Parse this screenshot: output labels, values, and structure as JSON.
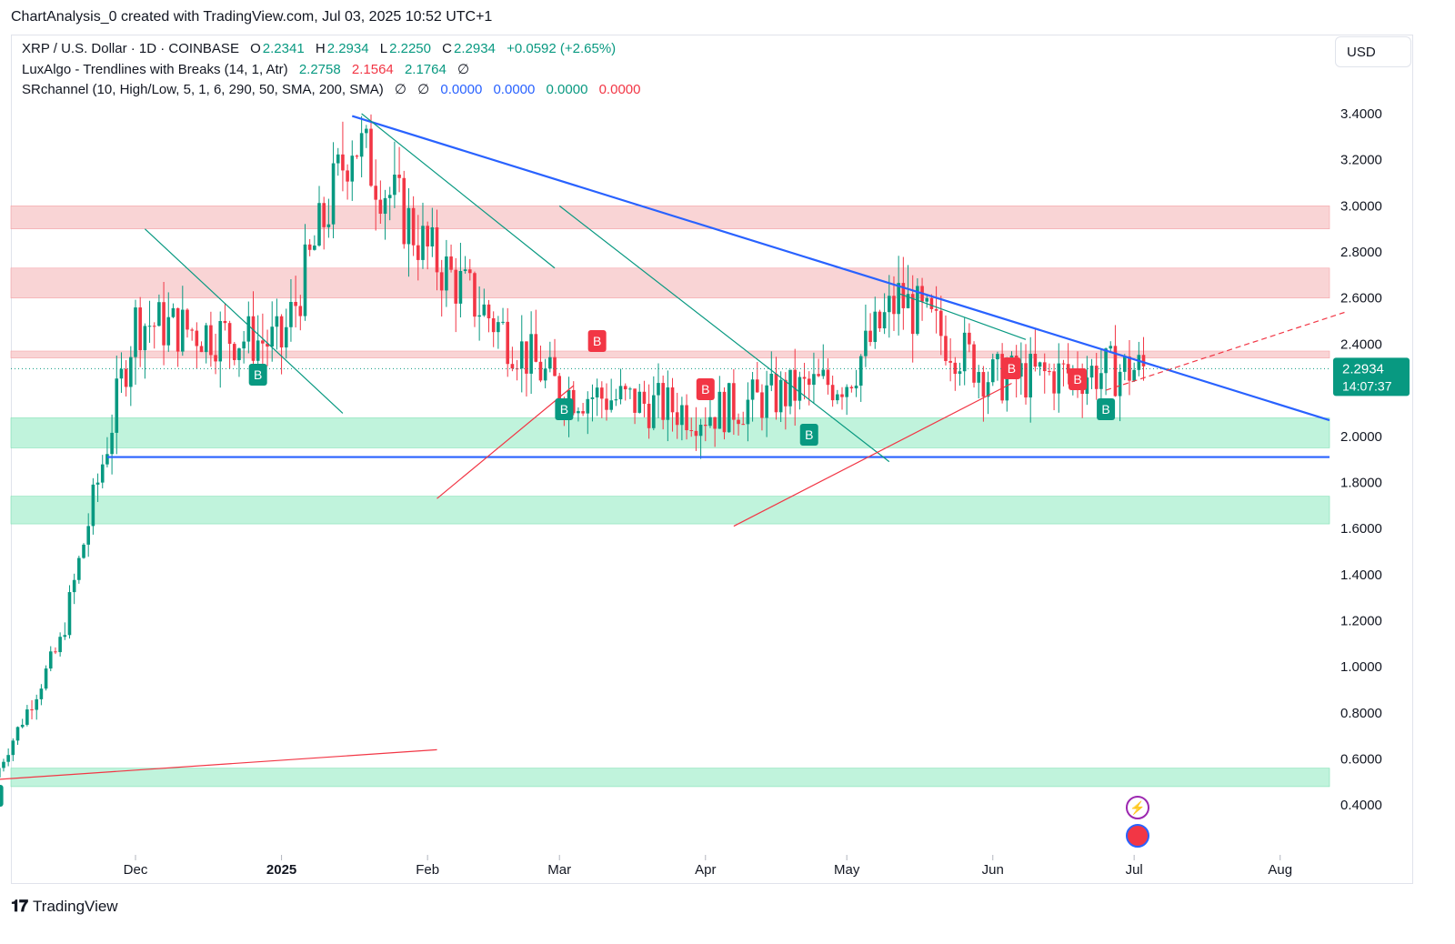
{
  "header": {
    "credit": "ChartAnalysis_0 created with TradingView.com, Jul 03, 2025 10:52 UTC+1"
  },
  "legend": {
    "symbol": "XRP / U.S. Dollar · 1D · COINBASE",
    "o_label": "O",
    "o_value": "2.2341",
    "h_label": "H",
    "h_value": "2.2934",
    "l_label": "L",
    "l_value": "2.2250",
    "c_label": "C",
    "c_value": "2.2934",
    "change": "+0.0592 (+2.65%)",
    "indicator1": "LuxAlgo - Trendlines with Breaks (14, 1, Atr)",
    "indicator1_values": [
      "2.2758",
      "2.1564",
      "2.1764"
    ],
    "indicator2": "SRchannel (10, High/Low, 5, 1, 6, 290, 50, SMA, 200, SMA)",
    "indicator2_values": [
      "0.0000",
      "0.0000",
      "0.0000",
      "0.0000"
    ],
    "hidden_icon": "∅"
  },
  "currency_button": "USD",
  "price_label": {
    "price": "2.2934",
    "countdown": "14:07:37"
  },
  "footer": {
    "brand": "TradingView"
  },
  "colors": {
    "up": "#089981",
    "down": "#f23645",
    "trend": "#2962ff",
    "resistance_zone": "#f8c9cb",
    "support_zone": "#b5f1d6",
    "signal_b_green": "#089981",
    "signal_b_red": "#f23645"
  },
  "chart_data": {
    "type": "candlestick",
    "x_ticks": [
      "Dec",
      "2025",
      "Feb",
      "Mar",
      "Apr",
      "May",
      "Jun",
      "Jul",
      "Aug"
    ],
    "y_ticks": [
      "3.4000",
      "3.2000",
      "3.0000",
      "2.8000",
      "2.6000",
      "2.4000",
      "2.0000",
      "1.8000",
      "1.6000",
      "1.4000",
      "1.2000",
      "1.0000",
      "0.8000",
      "0.6000",
      "0.4000"
    ],
    "ylim": [
      0.2,
      3.6
    ],
    "last_price": 2.2934,
    "resistance_zones": [
      [
        2.9,
        3.0
      ],
      [
        2.6,
        2.73
      ],
      [
        2.34,
        2.37
      ]
    ],
    "support_zones": [
      [
        1.95,
        2.08
      ],
      [
        1.62,
        1.74
      ],
      [
        0.48,
        0.56
      ]
    ],
    "horizontal_support": 1.91,
    "descending_trendline": {
      "from": [
        "2025-01-16",
        3.39
      ],
      "to": [
        "2025-08-15",
        2.07
      ]
    },
    "markers": [
      {
        "label": "B",
        "kind": "buy",
        "date": "2024-11-01"
      },
      {
        "label": "B",
        "kind": "buy",
        "date": "2024-12-27"
      },
      {
        "label": "B",
        "kind": "sell",
        "date": "2025-03-09"
      },
      {
        "label": "B",
        "kind": "buy",
        "date": "2025-03-02"
      },
      {
        "label": "B",
        "kind": "sell",
        "date": "2025-04-01"
      },
      {
        "label": "B",
        "kind": "buy",
        "date": "2025-04-23"
      },
      {
        "label": "B",
        "kind": "sell",
        "date": "2025-06-05"
      },
      {
        "label": "B",
        "kind": "sell",
        "date": "2025-06-19"
      },
      {
        "label": "B",
        "kind": "buy",
        "date": "2025-06-25"
      }
    ],
    "closes_monthly_approx": [
      {
        "date": "2024-11-01",
        "close": 0.52
      },
      {
        "date": "2024-11-15",
        "close": 1.1
      },
      {
        "date": "2024-12-01",
        "close": 2.5
      },
      {
        "date": "2025-01-01",
        "close": 2.4
      },
      {
        "date": "2025-01-16",
        "close": 3.3
      },
      {
        "date": "2025-02-01",
        "close": 2.8
      },
      {
        "date": "2025-03-01",
        "close": 2.2
      },
      {
        "date": "2025-04-01",
        "close": 2.1
      },
      {
        "date": "2025-05-01",
        "close": 2.25
      },
      {
        "date": "2025-05-12",
        "close": 2.6
      },
      {
        "date": "2025-06-01",
        "close": 2.25
      },
      {
        "date": "2025-07-03",
        "close": 2.2934
      }
    ]
  }
}
